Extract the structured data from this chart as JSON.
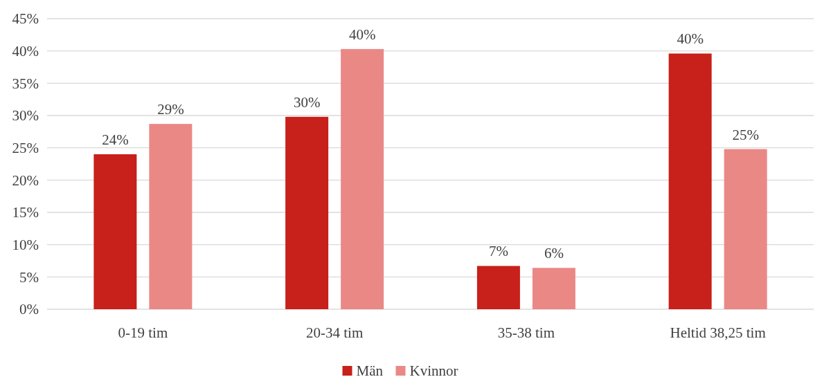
{
  "chart_data": {
    "type": "bar",
    "categories": [
      "0-19 tim",
      "20-34 tim",
      "35-38 tim",
      "Heltid 38,25 tim"
    ],
    "series": [
      {
        "name": "Män",
        "color": "#c8201a",
        "values": [
          24,
          29.8,
          6.7,
          39.6
        ],
        "value_labels": [
          "24%",
          "30%",
          "7%",
          "40%"
        ]
      },
      {
        "name": "Kvinnor",
        "color": "#ea8886",
        "values": [
          28.7,
          40.3,
          6.4,
          24.8
        ],
        "value_labels": [
          "29%",
          "40%",
          "6%",
          "25%"
        ]
      }
    ],
    "ylim": [
      0,
      45
    ],
    "yticks": [
      {
        "value": 0,
        "label": "0%"
      },
      {
        "value": 5,
        "label": "5%"
      },
      {
        "value": 10,
        "label": "10%"
      },
      {
        "value": 15,
        "label": "15%"
      },
      {
        "value": 20,
        "label": "20%"
      },
      {
        "value": 25,
        "label": "25%"
      },
      {
        "value": 30,
        "label": "30%"
      },
      {
        "value": 35,
        "label": "35%"
      },
      {
        "value": 40,
        "label": "40%"
      },
      {
        "value": 45,
        "label": "45%"
      }
    ],
    "grid": "y",
    "legend": "bottom"
  }
}
